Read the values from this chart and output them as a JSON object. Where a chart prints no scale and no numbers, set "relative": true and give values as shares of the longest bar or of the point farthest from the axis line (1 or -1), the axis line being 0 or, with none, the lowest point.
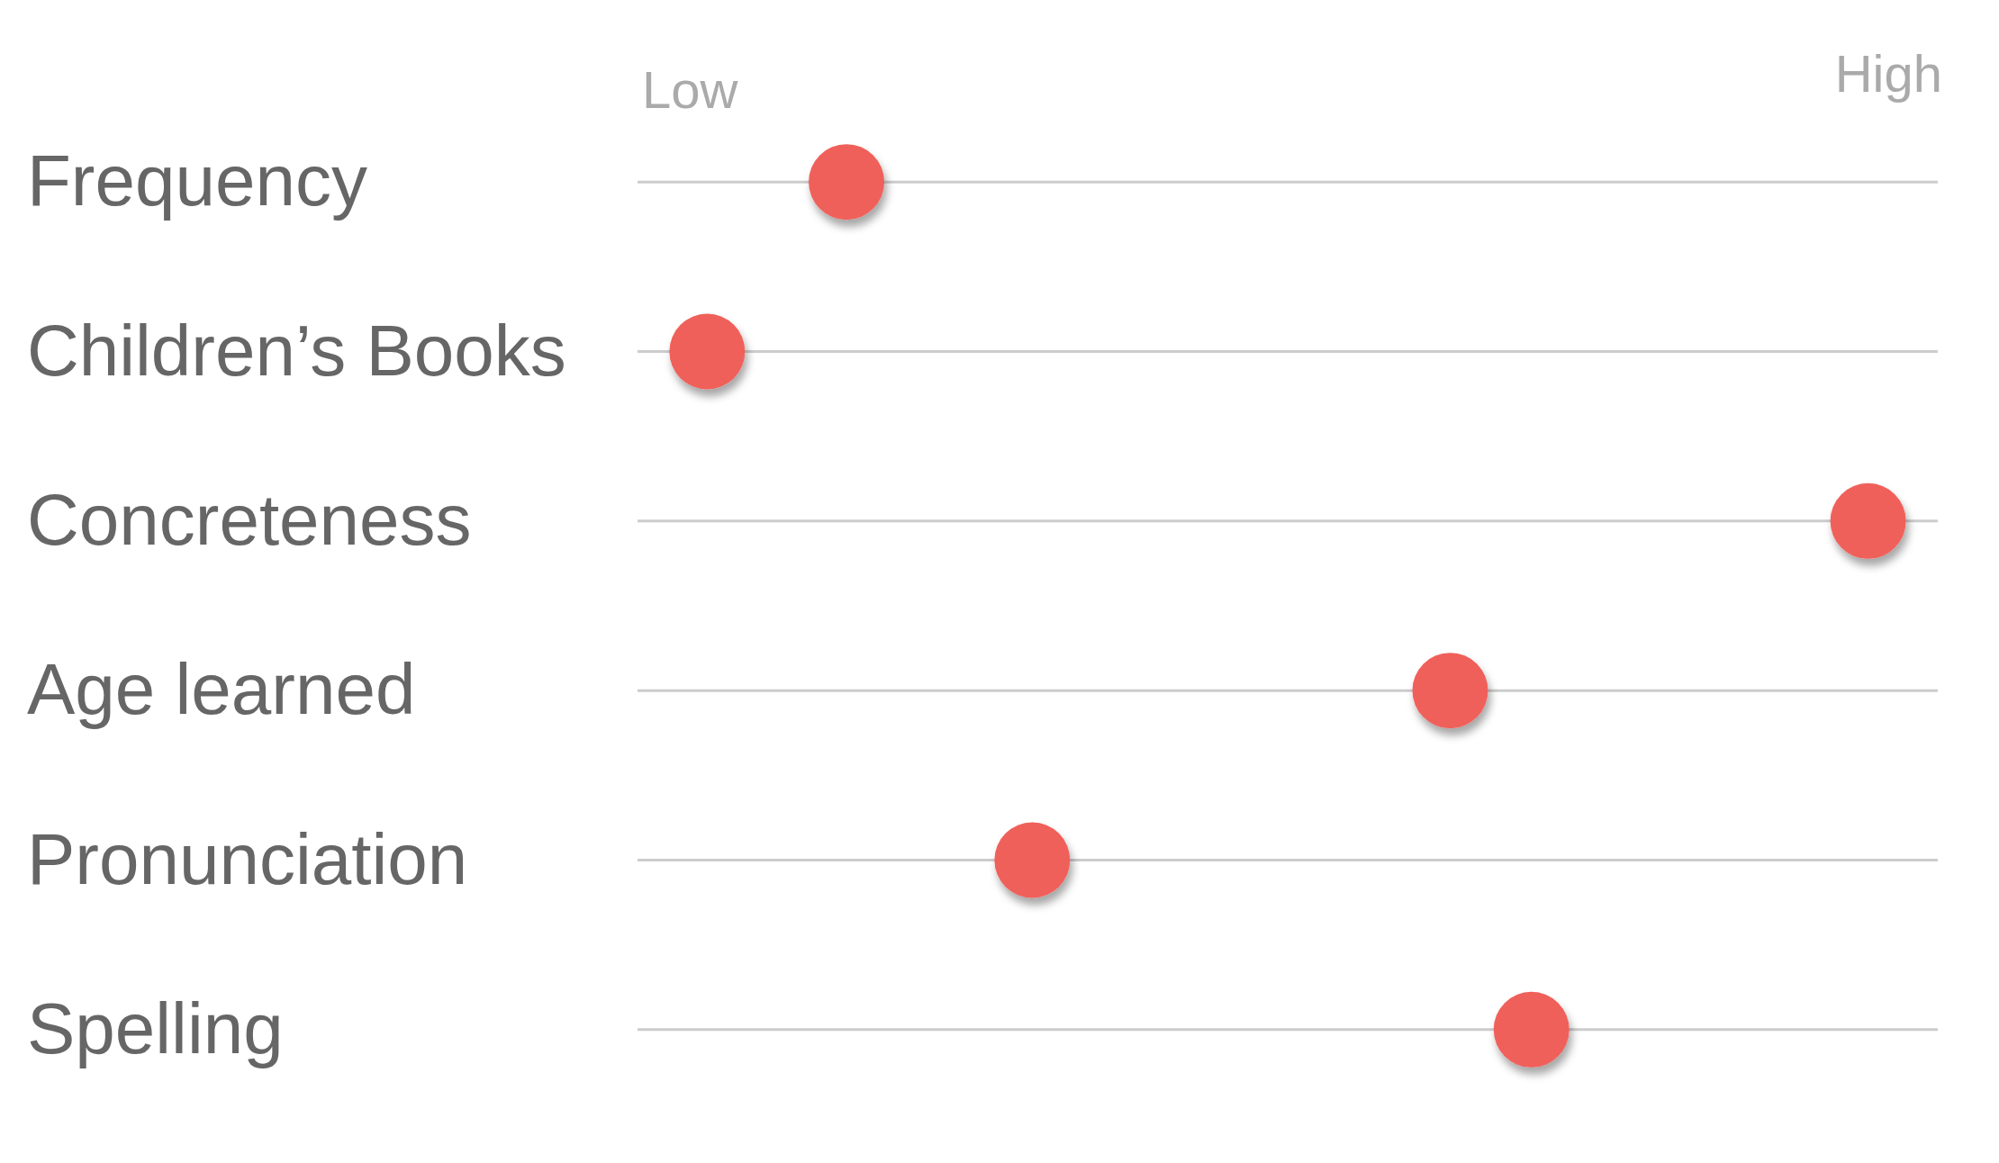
{
  "chart_data": {
    "type": "scatter",
    "orientation": "horizontal",
    "relative": true,
    "categories": [
      "Frequency",
      "Children’s Books",
      "Concreteness",
      "Age learned",
      "Pronunciation",
      "Spelling"
    ],
    "values": [
      0.12,
      0,
      1,
      0.64,
      0.28,
      0.71
    ],
    "color": "#f0605a",
    "marker": "circle",
    "annotations": [
      "Low",
      "High"
    ],
    "grid": "y"
  }
}
